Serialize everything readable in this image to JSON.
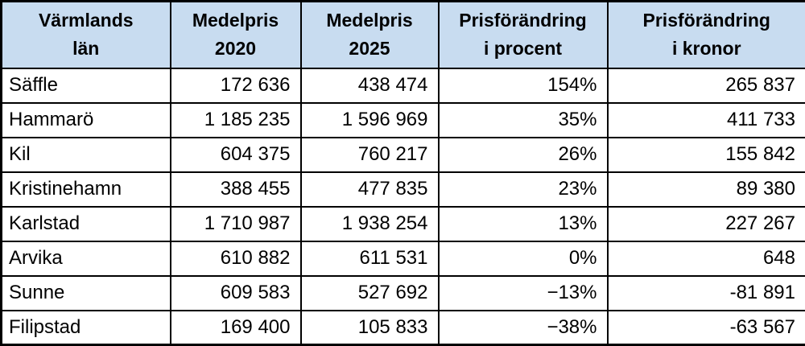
{
  "colors": {
    "header_bg": "#C8DCF0",
    "border": "#000000",
    "text": "#000000",
    "row_bg": "#FFFFFF"
  },
  "table": {
    "headers": [
      {
        "line1": "Värmlands",
        "line2": "län"
      },
      {
        "line1": "Medelpris",
        "line2": "2020"
      },
      {
        "line1": "Medelpris",
        "line2": "2025"
      },
      {
        "line1": "Prisförändring",
        "line2": "i procent"
      },
      {
        "line1": "Prisförändring",
        "line2": "i kronor"
      }
    ],
    "rows": [
      {
        "name": "Säffle",
        "p2020": "172 636",
        "p2025": "438 474",
        "pct": "154%",
        "kr": "265 837"
      },
      {
        "name": "Hammarö",
        "p2020": "1 185 235",
        "p2025": "1 596 969",
        "pct": "35%",
        "kr": "411 733"
      },
      {
        "name": "Kil",
        "p2020": "604 375",
        "p2025": "760 217",
        "pct": "26%",
        "kr": "155 842"
      },
      {
        "name": "Kristinehamn",
        "p2020": "388 455",
        "p2025": "477 835",
        "pct": "23%",
        "kr": "89 380"
      },
      {
        "name": "Karlstad",
        "p2020": "1 710 987",
        "p2025": "1 938 254",
        "pct": "13%",
        "kr": "227 267"
      },
      {
        "name": "Arvika",
        "p2020": "610 882",
        "p2025": "611 531",
        "pct": "0%",
        "kr": "648"
      },
      {
        "name": "Sunne",
        "p2020": "609 583",
        "p2025": "527 692",
        "pct": "−13%",
        "kr": "-81 891"
      },
      {
        "name": "Filipstad",
        "p2020": "169 400",
        "p2025": "105 833",
        "pct": "−38%",
        "kr": "-63 567"
      }
    ]
  },
  "chart_data": {
    "type": "table",
    "title": "",
    "columns": [
      "Värmlands län",
      "Medelpris 2020",
      "Medelpris 2025",
      "Prisförändring i procent",
      "Prisförändring i kronor"
    ],
    "rows": [
      [
        "Säffle",
        172636,
        438474,
        "154%",
        265837
      ],
      [
        "Hammarö",
        1185235,
        1596969,
        "35%",
        411733
      ],
      [
        "Kil",
        604375,
        760217,
        "26%",
        155842
      ],
      [
        "Kristinehamn",
        388455,
        477835,
        "23%",
        89380
      ],
      [
        "Karlstad",
        1710987,
        1938254,
        "13%",
        227267
      ],
      [
        "Arvika",
        610882,
        611531,
        "0%",
        648
      ],
      [
        "Sunne",
        609583,
        527692,
        "-13%",
        -81891
      ],
      [
        "Filipstad",
        169400,
        105833,
        "-38%",
        -63567
      ]
    ]
  }
}
